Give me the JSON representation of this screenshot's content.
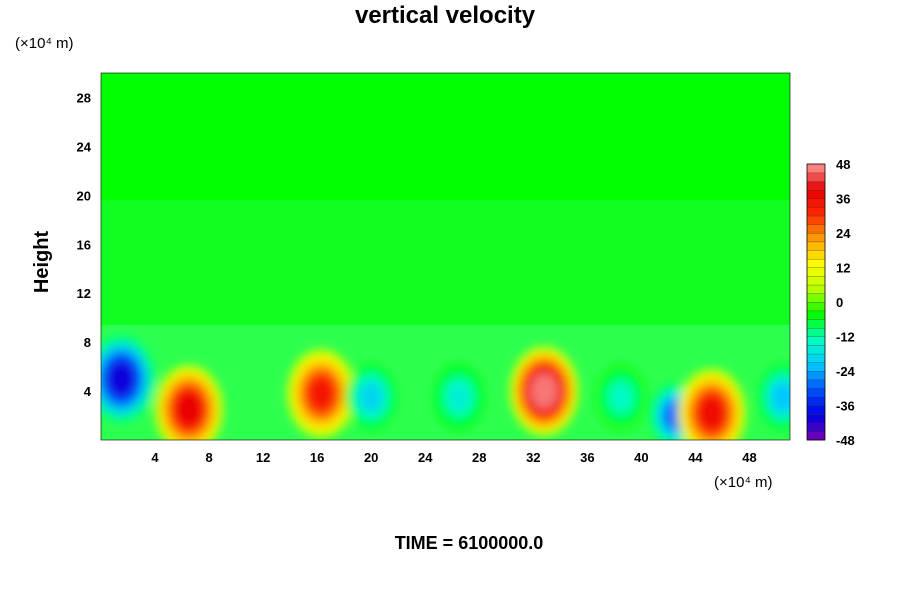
{
  "chart_data": {
    "type": "heatmap",
    "title": "vertical velocity",
    "ylabel": "Height",
    "xlabel": "",
    "y_unit": "(×10⁴ m)",
    "x_unit": "(×10⁴ m)",
    "xlim": [
      0,
      51
    ],
    "ylim": [
      0,
      30
    ],
    "x_ticks": [
      "4",
      "8",
      "12",
      "16",
      "20",
      "24",
      "28",
      "32",
      "36",
      "40",
      "44",
      "48"
    ],
    "y_ticks": [
      "4",
      "8",
      "12",
      "16",
      "20",
      "24",
      "28"
    ],
    "colorbar": {
      "range": [
        -48,
        48
      ],
      "step": 3,
      "tick_labels": [
        "48",
        "36",
        "24",
        "12",
        "0",
        "-12",
        "-24",
        "-36",
        "-48"
      ]
    },
    "colormap": [
      "#7a00b0",
      "#0000e0",
      "#0050ff",
      "#00c8ff",
      "#00ffc0",
      "#00ff00",
      "#b4ff00",
      "#ffff00",
      "#ffa000",
      "#ff2800",
      "#e60000",
      "#ff9a9a"
    ],
    "features": [
      {
        "x": 1.5,
        "y": 5.0,
        "w": -40
      },
      {
        "x": 6.5,
        "y": 2.5,
        "w": 38
      },
      {
        "x": 16.3,
        "y": 3.8,
        "w": 34
      },
      {
        "x": 20.0,
        "y": 3.5,
        "w": -20
      },
      {
        "x": 26.5,
        "y": 3.5,
        "w": -16
      },
      {
        "x": 32.8,
        "y": 4.0,
        "w": 46
      },
      {
        "x": 38.5,
        "y": 3.5,
        "w": -14
      },
      {
        "x": 42.5,
        "y": 2.0,
        "w": -30
      },
      {
        "x": 45.2,
        "y": 2.2,
        "w": 36
      },
      {
        "x": 50.5,
        "y": 3.5,
        "w": -22
      }
    ],
    "footer": "TIME = 6100000.0",
    "grid": false,
    "legend": "colorbar-right"
  }
}
